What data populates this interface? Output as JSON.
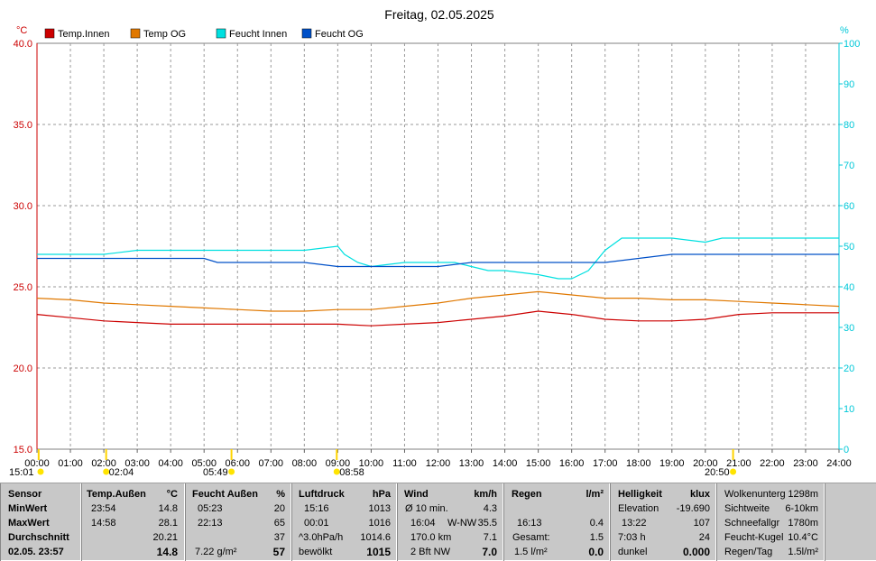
{
  "chart_data": {
    "type": "line",
    "title": "Freitag, 02.05.2025",
    "y_left_unit": "°C",
    "y_right_unit": "%",
    "y_left_ticks": [
      "40.0",
      "35.0",
      "30.0",
      "25.0",
      "20.0",
      "15.0"
    ],
    "y_right_ticks": [
      "100",
      "90",
      "80",
      "70",
      "60",
      "50",
      "40",
      "30",
      "20",
      "10",
      "0"
    ],
    "ylim_left": [
      15,
      40
    ],
    "ylim_right": [
      0,
      100
    ],
    "x_ticks": [
      "00:00",
      "01:00",
      "02:00",
      "03:00",
      "04:00",
      "05:00",
      "06:00",
      "07:00",
      "08:00",
      "09:00",
      "10:00",
      "11:00",
      "12:00",
      "13:00",
      "14:00",
      "15:00",
      "16:00",
      "17:00",
      "18:00",
      "19:00",
      "20:00",
      "21:00",
      "22:00",
      "23:00",
      "24:00"
    ],
    "xlim": [
      0,
      24
    ],
    "grid": true,
    "legend_position": "top-left",
    "series": [
      {
        "name": "Temp.Innen",
        "color": "#cc0000",
        "axis": "left",
        "x": [
          0,
          1,
          2,
          3,
          4,
          5,
          6,
          7,
          8,
          9,
          10,
          11,
          12,
          13,
          14,
          15,
          16,
          17,
          18,
          19,
          20,
          21,
          22,
          23,
          24
        ],
        "values": [
          23.3,
          23.1,
          22.9,
          22.8,
          22.7,
          22.7,
          22.7,
          22.7,
          22.7,
          22.7,
          22.6,
          22.7,
          22.8,
          23.0,
          23.2,
          23.5,
          23.3,
          23.0,
          22.9,
          22.9,
          23.0,
          23.3,
          23.4,
          23.4,
          23.4
        ]
      },
      {
        "name": "Temp OG",
        "color": "#e07800",
        "axis": "left",
        "x": [
          0,
          1,
          2,
          3,
          4,
          5,
          6,
          7,
          8,
          9,
          10,
          11,
          12,
          13,
          14,
          15,
          16,
          17,
          18,
          19,
          20,
          21,
          22,
          23,
          24
        ],
        "values": [
          24.3,
          24.2,
          24.0,
          23.9,
          23.8,
          23.7,
          23.6,
          23.5,
          23.5,
          23.6,
          23.6,
          23.8,
          24.0,
          24.3,
          24.5,
          24.7,
          24.5,
          24.3,
          24.3,
          24.2,
          24.2,
          24.1,
          24.0,
          23.9,
          23.8
        ]
      },
      {
        "name": "Feucht Innen",
        "color": "#00e0e0",
        "axis": "right",
        "x": [
          0,
          2,
          3,
          5,
          6,
          8,
          9,
          9.2,
          9.6,
          10,
          11,
          12,
          12.5,
          13,
          13.5,
          14,
          15,
          15.6,
          16,
          16.5,
          17,
          17.5,
          18,
          19,
          20,
          20.5,
          21,
          22,
          23,
          24
        ],
        "values": [
          48,
          48,
          49,
          49,
          49,
          49,
          50,
          48,
          46,
          45,
          46,
          46,
          46,
          45,
          44,
          44,
          43,
          42,
          42,
          44,
          49,
          52,
          52,
          52,
          51,
          52,
          52,
          52,
          52,
          52
        ]
      },
      {
        "name": "Feucht OG",
        "color": "#0050c8",
        "axis": "right",
        "x": [
          0,
          2,
          5,
          5.4,
          6,
          6.2,
          7,
          8,
          9,
          10,
          12,
          13,
          14,
          15,
          16,
          17,
          18,
          19,
          20,
          21,
          22,
          23,
          24
        ],
        "values": [
          47,
          47,
          47,
          46,
          46,
          46,
          46,
          46,
          45,
          45,
          45,
          46,
          46,
          46,
          46,
          46,
          47,
          48,
          48,
          48,
          48,
          48,
          48
        ]
      }
    ],
    "sun_markers": [
      {
        "time": "15:01",
        "x": 0.05
      },
      {
        "time": "02:04",
        "x": 2.07
      },
      {
        "time": "05:49",
        "x": 5.82
      },
      {
        "time": "08:58",
        "x": 8.97
      },
      {
        "time": "20:50",
        "x": 20.83
      }
    ]
  },
  "stats": {
    "sensor": {
      "title": "Sensor",
      "min": "MinWert",
      "max": "MaxWert",
      "avg": "Durchschnitt",
      "current": "02.05. 23:57"
    },
    "temp": {
      "title": "Temp.Außen",
      "unit": "°C",
      "min_time": "23:54",
      "min": "14.8",
      "max_time": "14:58",
      "max": "28.1",
      "avg": "20.21",
      "current": "14.8"
    },
    "feucht": {
      "title": "Feucht Außen",
      "unit": "%",
      "min_time": "05:23",
      "min": "20",
      "max_time": "22:13",
      "max": "65",
      "avg": "37",
      "abs": "7.22 g/m²",
      "current": "57"
    },
    "luftdruck": {
      "title": "Luftdruck",
      "unit": "hPa",
      "min_time": "15:16",
      "min": "1013",
      "max_time": "00:01",
      "max": "1016",
      "trend_label": "^3.0hPa/h",
      "trend": "1014.6",
      "weather": "bewölkt",
      "current": "1015"
    },
    "wind": {
      "title": "Wind",
      "unit": "km/h",
      "r1_label": "Ø 10 min.",
      "r1_val": "4.3",
      "r2_time": "16:04",
      "r2_dir": "W-NW",
      "r2_val": "35.5",
      "r3_label": "170.0 km",
      "r3_val": "7.1",
      "r4_label": "2 Bft NW",
      "current": "7.0"
    },
    "regen": {
      "title": "Regen",
      "unit": "l/m²",
      "r2_time": "16:13",
      "r2_val": "0.4",
      "r3_label": "Gesamt:",
      "r3_val": "1.5",
      "r4_label": "1.5 l/m²",
      "current": "0.0"
    },
    "hell": {
      "title": "Helligkeit",
      "unit": "klux",
      "r1_label": "Elevation",
      "r1_val": "-19.690",
      "r2_time": "13:22",
      "r2_val": "107",
      "r3_label": "7:03 h",
      "r3_val": "24",
      "r4_label": "dunkel",
      "current": "0.000"
    },
    "extra": {
      "rows": [
        {
          "label": "Wolkenunterg",
          "val": "1298m"
        },
        {
          "label": "Sichtweite",
          "val": "6-10km"
        },
        {
          "label": "Schneefallgr",
          "val": "1780m"
        },
        {
          "label": "Feucht-Kugel",
          "val": "10.4°C"
        },
        {
          "label": "Regen/Tag",
          "val": "1.5l/m²"
        }
      ]
    }
  }
}
